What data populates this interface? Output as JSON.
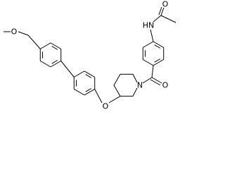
{
  "atoms": [
    {
      "label": "O"
    },
    {
      "label": "HN"
    },
    {
      "label": "O"
    },
    {
      "label": "N"
    },
    {
      "label": "O"
    },
    {
      "label": "O"
    }
  ]
}
